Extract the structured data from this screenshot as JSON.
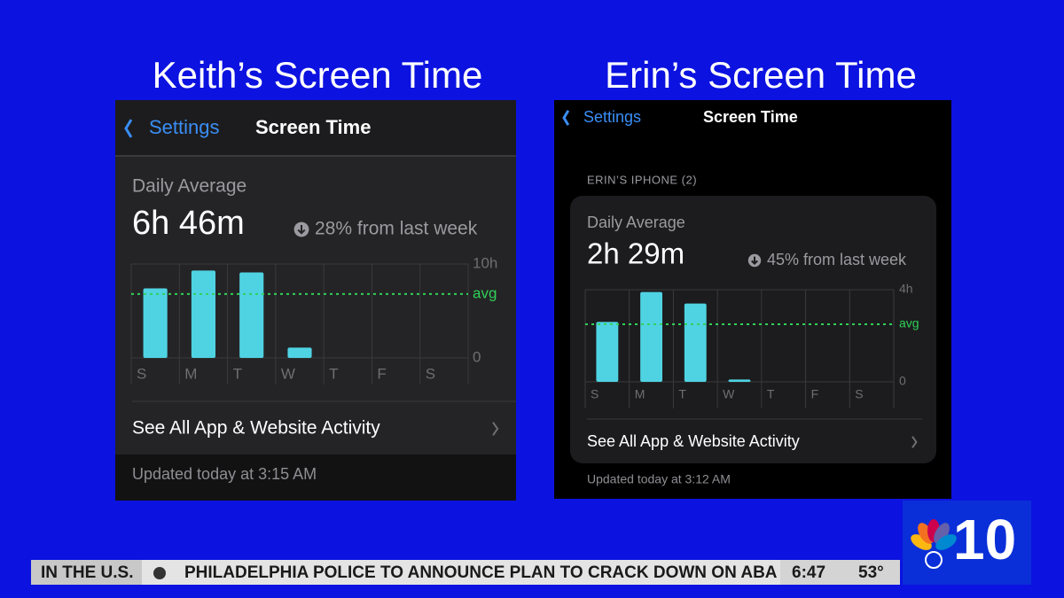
{
  "panels": [
    {
      "title": "Keith’s Screen Time",
      "nav_back": "Settings",
      "nav_title": "Screen Time",
      "daily_label": "Daily Average",
      "daily_value": "6h 46m",
      "change": "28% from last week",
      "link": "See All App & Website Activity",
      "updated": "Updated today at 3:15 AM",
      "chart": {
        "type": "bar",
        "categories": [
          "S",
          "M",
          "T",
          "W",
          "T",
          "F",
          "S"
        ],
        "values": [
          7.4,
          9.3,
          9.1,
          1.1,
          null,
          null,
          null
        ],
        "color": "#4fd3e3",
        "ylim": [
          0,
          10
        ],
        "yticks": [
          0,
          {
            "value": 10,
            "label": "10h"
          }
        ],
        "avg": 6.8,
        "avg_label": "avg",
        "avg_color": "#30d158"
      }
    },
    {
      "title": "Erin’s Screen Time",
      "nav_back": "Settings",
      "nav_title": "Screen Time",
      "device": "ERIN’S IPHONE (2)",
      "daily_label": "Daily Average",
      "daily_value": "2h 29m",
      "change": "45% from last week",
      "link": "See All App & Website Activity",
      "updated": "Updated today at 3:12 AM",
      "chart": {
        "type": "bar",
        "categories": [
          "S",
          "M",
          "T",
          "W",
          "T",
          "F",
          "S"
        ],
        "values": [
          2.6,
          3.9,
          3.4,
          0.1,
          null,
          null,
          null
        ],
        "color": "#4fd3e3",
        "ylim": [
          0,
          4
        ],
        "yticks": [
          0,
          {
            "value": 4,
            "label": "4h"
          }
        ],
        "avg": 2.5,
        "avg_label": "avg",
        "avg_color": "#30d158"
      }
    }
  ],
  "ticker": {
    "section": "IN THE U.S.",
    "headline": "PHILADELPHIA POLICE TO ANNOUNCE PLAN TO CRACK DOWN ON ABA",
    "time": "6:47",
    "temperature": "53°"
  },
  "logo": "10"
}
